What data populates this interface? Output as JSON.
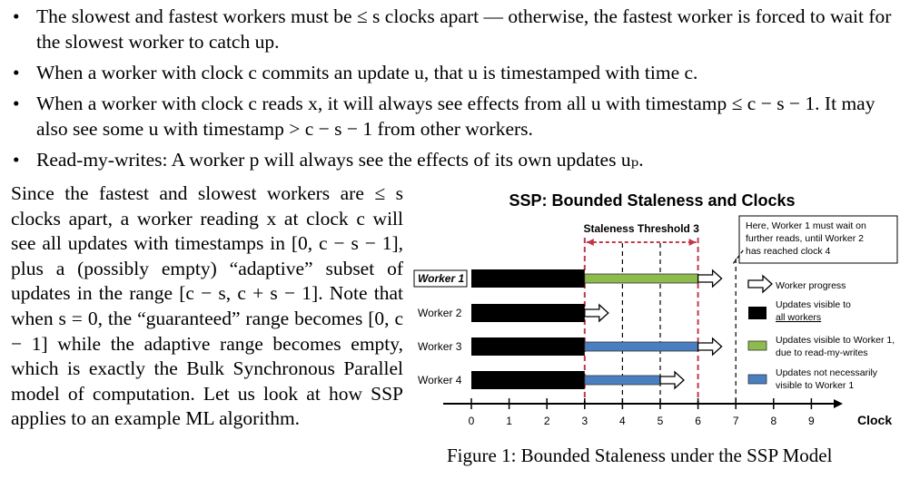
{
  "bullets": [
    "The slowest and fastest workers must be ≤ s clocks apart — otherwise, the fastest worker is forced to wait for the slowest worker to catch up.",
    "When a worker with clock c commits an update u, that u is timestamped with time c.",
    "When a worker with clock c reads x, it will always see effects from all u with timestamp ≤ c − s − 1. It may also see some u with timestamp > c − s − 1 from other workers.",
    "Read-my-writes: A worker p will always see the effects of its own updates uₚ."
  ],
  "paragraph": "Since the fastest and slowest workers are ≤ s clocks apart, a worker reading x at clock c will see all updates with timestamps in [0, c − s − 1], plus a (possibly empty) “adaptive” subset of updates in the range [c − s, c + s − 1]. Note that when s = 0, the “guaranteed” range becomes [0, c − 1] while the adaptive range becomes empty, which is exactly the Bulk Synchronous Parallel model of computation. Let us look at how SSP applies to an example ML algorithm.",
  "figure": {
    "title": "SSP: Bounded Staleness and Clocks",
    "threshold_label": "Staleness Threshold 3",
    "note": [
      "Here, Worker 1 must wait on",
      "further reads, until Worker 2",
      "has reached clock 4"
    ],
    "axis_label": "Clock",
    "ticks": [
      "0",
      "1",
      "2",
      "3",
      "4",
      "5",
      "6",
      "7",
      "8",
      "9"
    ],
    "legend": {
      "progress": "Worker progress",
      "all": [
        "Updates visible to",
        "all workers"
      ],
      "rmw": [
        "Updates visible to Worker 1,",
        "due to read-my-writes"
      ],
      "notnec": [
        "Updates not necessarily",
        "visible to Worker 1"
      ]
    },
    "caption": "Figure 1: Bounded Staleness under the SSP Model"
  },
  "chart_data": {
    "type": "bar",
    "title": "SSP: Bounded Staleness and Clocks",
    "xlabel": "Clock",
    "xlim": [
      0,
      9
    ],
    "staleness_threshold": [
      3,
      6
    ],
    "wait_marker": 7,
    "workers": [
      {
        "name": "Worker 1",
        "black": [
          0,
          3
        ],
        "color_bar": [
          3,
          6
        ],
        "color": "green",
        "arrow": 6
      },
      {
        "name": "Worker 2",
        "black": [
          0,
          3
        ],
        "color_bar": null,
        "color": null,
        "arrow": 3
      },
      {
        "name": "Worker 3",
        "black": [
          0,
          3
        ],
        "color_bar": [
          3,
          6
        ],
        "color": "blue",
        "arrow": 6
      },
      {
        "name": "Worker 4",
        "black": [
          0,
          3
        ],
        "color_bar": [
          3,
          5
        ],
        "color": "blue",
        "arrow": 5
      }
    ],
    "colors": {
      "green": "#8DBB4D",
      "blue": "#4A7EC0",
      "black": "#000000",
      "red": "#C0394B"
    }
  }
}
